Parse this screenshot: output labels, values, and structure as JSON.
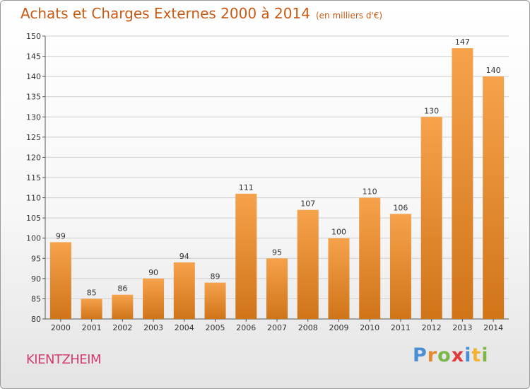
{
  "header": {
    "title": "Achats et Charges Externes 2000 à 2014",
    "subtitle": "(en milliers d'€)"
  },
  "footer": {
    "commune": "KIENTZHEIM",
    "logo_letters": [
      "P",
      "r",
      "o",
      "x",
      "i",
      "t",
      "i"
    ],
    "logo_colors": [
      "#4a8fd4",
      "#e88a2c",
      "#7ab648",
      "#e03a3a",
      "#4a8fd4",
      "#f2b233",
      "#7ab648"
    ]
  },
  "colors": {
    "bar_light": "#f6a24c",
    "bar_dark": "#d07418",
    "title": "#c85a14",
    "commune": "#d23c6e",
    "grid": "#cfcfcf"
  },
  "chart_data": {
    "type": "bar",
    "title": "Achats et Charges Externes 2000 à 2014",
    "subtitle": "(en milliers d'€)",
    "xlabel": "",
    "ylabel": "",
    "categories": [
      "2000",
      "2001",
      "2002",
      "2003",
      "2004",
      "2005",
      "2006",
      "2007",
      "2008",
      "2009",
      "2010",
      "2011",
      "2012",
      "2013",
      "2014"
    ],
    "values": [
      99,
      85,
      86,
      90,
      94,
      89,
      111,
      95,
      107,
      100,
      110,
      106,
      130,
      147,
      140
    ],
    "ylim": [
      80,
      150
    ],
    "yticks": [
      80,
      85,
      90,
      95,
      100,
      105,
      110,
      115,
      120,
      125,
      130,
      135,
      140,
      145,
      150
    ],
    "grid": true,
    "legend": "none"
  }
}
